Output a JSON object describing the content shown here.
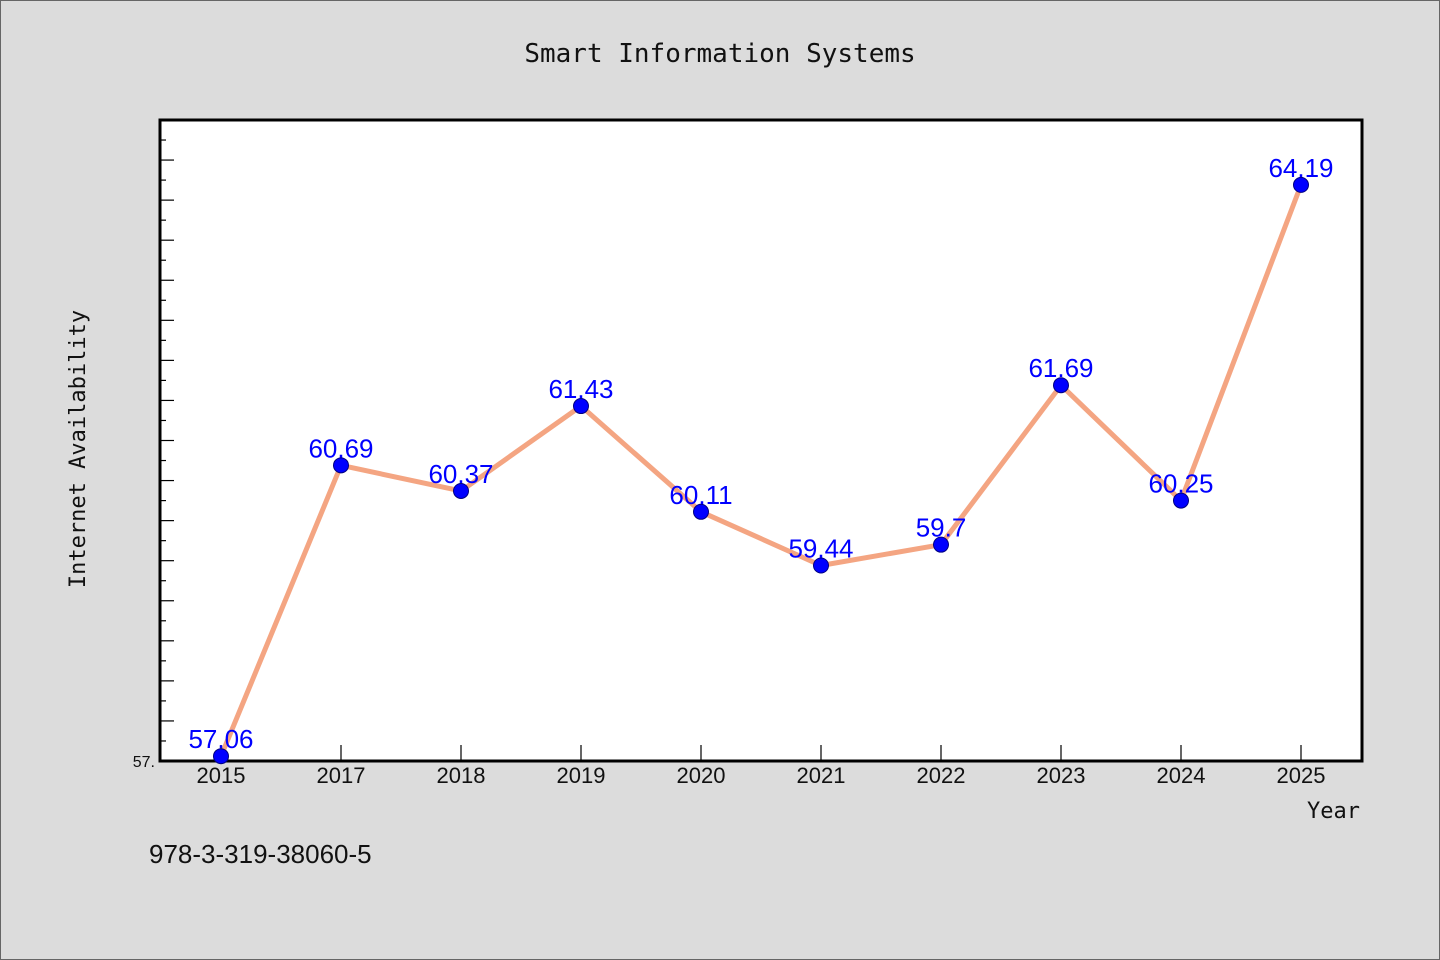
{
  "chart_data": {
    "type": "line",
    "title": "Smart Information Systems",
    "xlabel": "Year",
    "ylabel": "Internet Availability",
    "categories": [
      "2015",
      "2017",
      "2018",
      "2019",
      "2020",
      "2021",
      "2022",
      "2023",
      "2024",
      "2025"
    ],
    "series": [
      {
        "values": [
          57.06,
          60.69,
          60.37,
          61.43,
          60.11,
          59.44,
          59.7,
          61.69,
          60.25,
          64.19
        ],
        "labels": [
          "57.06",
          "60.69",
          "60.37",
          "61.43",
          "60.11",
          "59.44",
          "59.7",
          "61.69",
          "60.25",
          "64.19"
        ],
        "line_color": "#f4a582",
        "marker_color": "#0000ff"
      }
    ],
    "ylim": [
      57.0,
      65.0
    ],
    "y_tick_labels": [
      "57."
    ],
    "grid": false,
    "legend": "none"
  },
  "footer": {
    "code": "978-3-319-38060-5"
  }
}
